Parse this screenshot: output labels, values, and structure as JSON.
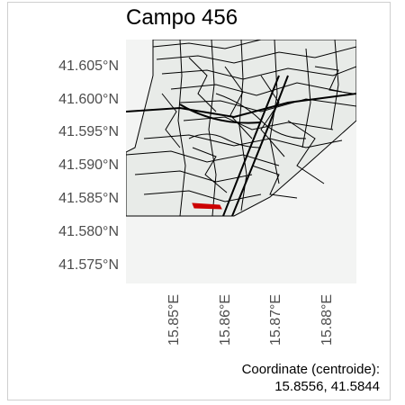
{
  "title": "Campo 456",
  "map": {
    "lat_labels": [
      "41.605°N",
      "41.600°N",
      "41.595°N",
      "41.590°N",
      "41.585°N",
      "41.580°N",
      "41.575°N"
    ],
    "lon_labels": [
      "15.85°E",
      "15.86°E",
      "15.87°E",
      "15.88°E"
    ],
    "highlight_color": "#cc0000",
    "land_color": "#e8ebe8",
    "background_color": "#f3f4f3"
  },
  "caption": {
    "line1": "Coordinate (centroide):",
    "line2": "15.8556, 41.5844"
  }
}
